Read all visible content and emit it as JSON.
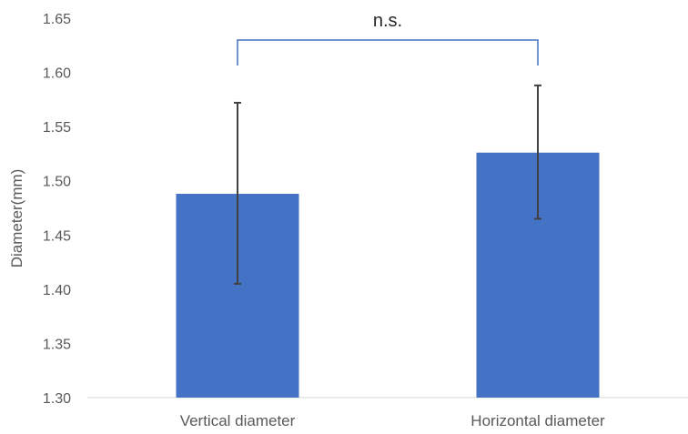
{
  "chart_data": {
    "type": "bar",
    "categories": [
      "Vertical diameter",
      "Horizontal diameter"
    ],
    "values": [
      1.488,
      1.526
    ],
    "error_bars": [
      {
        "low": 1.405,
        "high": 1.572
      },
      {
        "low": 1.465,
        "high": 1.588
      }
    ],
    "ylabel": "Diameter(mm)",
    "xlabel": "",
    "ylim": [
      1.3,
      1.65
    ],
    "yticks": [
      "1.30",
      "1.35",
      "1.40",
      "1.45",
      "1.50",
      "1.55",
      "1.60",
      "1.65"
    ],
    "grid": false,
    "bar_color": "#4472C4",
    "error_color": "#404040",
    "significance": {
      "label": "n.s.",
      "between": [
        0,
        1
      ],
      "color": "#4472C4"
    }
  }
}
